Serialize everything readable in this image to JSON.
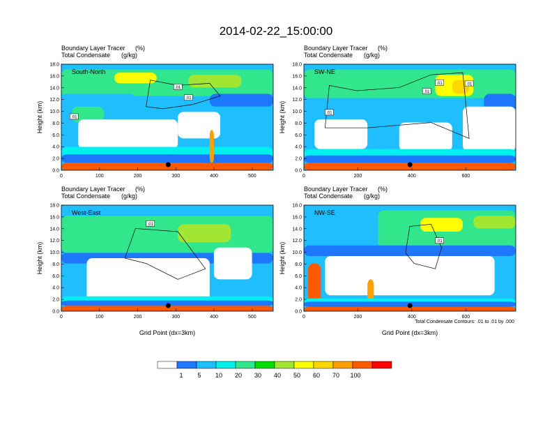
{
  "figure": {
    "title": "2014-02-22_15:00:00",
    "note": "Total Condensate Contours: .01 to .01 by .000",
    "colors": {
      "bins": [
        "#ffffff",
        "#1e78ff",
        "#1ebeff",
        "#00f0f0",
        "#32e68c",
        "#00dc00",
        "#a0e632",
        "#ffff00",
        "#ffd700",
        "#ffa000",
        "#ff5a00",
        "#ff0000"
      ],
      "contour": "#000000",
      "marker": "#000000"
    }
  },
  "colorbar": {
    "labels": [
      "1",
      "5",
      "10",
      "20",
      "30",
      "40",
      "50",
      "60",
      "70",
      "100"
    ]
  },
  "chart_data": [
    {
      "type": "heatmap",
      "panel_label": "South-North",
      "subtitle_left_1": "Boundary Layer Tracer",
      "subtitle_units_1": "(%)",
      "subtitle_left_2": "Total Condensate",
      "subtitle_units_2": "(g/kg)",
      "ylabel": "Height (km)",
      "xlabel": "",
      "xlim": [
        0,
        555
      ],
      "ylim": [
        0,
        18
      ],
      "xticks": [
        "0",
        "100",
        "200",
        "300",
        "400",
        "500"
      ],
      "yticks": [
        "0.0",
        "2.0",
        "4.0",
        "6.0",
        "8.0",
        "10.0",
        "12.0",
        "14.0",
        "16.0",
        "18.0"
      ],
      "contour_labels": [
        ".01",
        ".01",
        ".01"
      ],
      "marker_x": 280
    },
    {
      "type": "heatmap",
      "panel_label": "SW-NE",
      "subtitle_left_1": "Boundary Layer Tracer",
      "subtitle_units_1": "(%)",
      "subtitle_left_2": "Total Condensate",
      "subtitle_units_2": "(g/kg)",
      "ylabel": "Height (km)",
      "xlabel": "",
      "xlim": [
        0,
        785
      ],
      "ylim": [
        0,
        18
      ],
      "xticks": [
        "0",
        "200",
        "400",
        "600"
      ],
      "yticks": [
        "0.0",
        "2.0",
        "4.0",
        "6.0",
        "8.0",
        "10.0",
        "12.0",
        "14.0",
        "16.0",
        "18.0"
      ],
      "contour_labels": [
        ".01",
        ".01",
        ".01",
        ".01"
      ],
      "marker_x": 393
    },
    {
      "type": "heatmap",
      "panel_label": "West-East",
      "subtitle_left_1": "Boundary Layer Tracer",
      "subtitle_units_1": "(%)",
      "subtitle_left_2": "Total Condensate",
      "subtitle_units_2": "(g/kg)",
      "ylabel": "Height (km)",
      "xlabel": "Grid Point (dx=3km)",
      "xlim": [
        0,
        555
      ],
      "ylim": [
        0,
        18
      ],
      "xticks": [
        "0",
        "100",
        "200",
        "300",
        "400",
        "500"
      ],
      "yticks": [
        "0.0",
        "2.0",
        "4.0",
        "6.0",
        "8.0",
        "10.0",
        "12.0",
        "14.0",
        "16.0",
        "18.0"
      ],
      "contour_labels": [
        ".01"
      ],
      "marker_x": 280
    },
    {
      "type": "heatmap",
      "panel_label": "NW-SE",
      "subtitle_left_1": "Boundary Layer Tracer",
      "subtitle_units_1": "(%)",
      "subtitle_left_2": "Total Condensate",
      "subtitle_units_2": "(g/kg)",
      "ylabel": "Height (km)",
      "xlabel": "Grid Point (dx=3km)",
      "xlim": [
        0,
        785
      ],
      "ylim": [
        0,
        18
      ],
      "xticks": [
        "0",
        "200",
        "400",
        "600"
      ],
      "yticks": [
        "0.0",
        "2.0",
        "4.0",
        "6.0",
        "8.0",
        "10.0",
        "12.0",
        "14.0",
        "16.0",
        "18.0"
      ],
      "contour_labels": [
        ".01"
      ],
      "marker_x": 393
    }
  ]
}
